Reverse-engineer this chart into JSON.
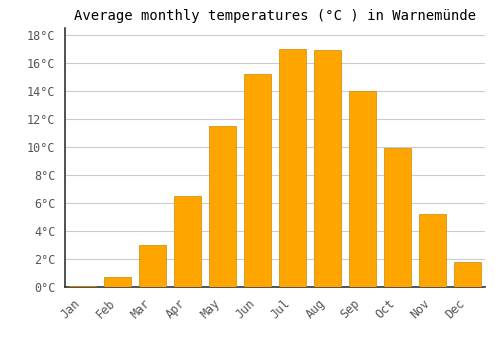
{
  "months": [
    "Jan",
    "Feb",
    "Mar",
    "Apr",
    "May",
    "Jun",
    "Jul",
    "Aug",
    "Sep",
    "Oct",
    "Nov",
    "Dec"
  ],
  "temperatures": [
    0.1,
    0.7,
    3.0,
    6.5,
    11.5,
    15.2,
    17.0,
    16.9,
    14.0,
    9.9,
    5.2,
    1.8
  ],
  "bar_color": "#FFA500",
  "bar_edge_color": "#CC8800",
  "title": "Average monthly temperatures (°C ) in Warnemünde",
  "ylim": [
    0,
    18.5
  ],
  "ytick_values": [
    0,
    2,
    4,
    6,
    8,
    10,
    12,
    14,
    16,
    18
  ],
  "background_color": "#ffffff",
  "grid_color": "#cccccc",
  "title_fontsize": 10,
  "tick_fontsize": 8.5,
  "font_family": "monospace",
  "spine_color": "#333333"
}
